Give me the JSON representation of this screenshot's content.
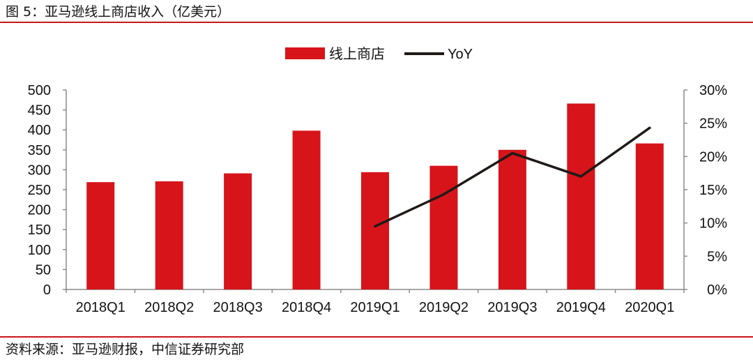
{
  "figure": {
    "title": "图 5：亚马逊线上商店收入（亿美元）",
    "source": "资料来源：亚马逊财报，中信证券研究部"
  },
  "chart_data": {
    "type": "bar",
    "title": "",
    "xlabel": "",
    "ylabel": "",
    "categories": [
      "2018Q1",
      "2018Q2",
      "2018Q3",
      "2018Q4",
      "2019Q1",
      "2019Q2",
      "2019Q3",
      "2019Q4",
      "2020Q1"
    ],
    "series": [
      {
        "name": "线上商店",
        "type": "bar",
        "axis": "left",
        "color": "#d7141a",
        "values": [
          269,
          271,
          291,
          398,
          294,
          310,
          350,
          466,
          366
        ]
      },
      {
        "name": "YoY",
        "type": "line",
        "axis": "right",
        "color": "#1f1a17",
        "values": [
          null,
          null,
          null,
          null,
          0.095,
          0.143,
          0.205,
          0.17,
          0.243
        ]
      }
    ],
    "ylim": [
      0,
      500
    ],
    "yticks": [
      "0",
      "50",
      "100",
      "150",
      "200",
      "250",
      "300",
      "350",
      "400",
      "450",
      "500"
    ],
    "y2lim": [
      0,
      0.3
    ],
    "y2ticks": [
      "0%",
      "5%",
      "10%",
      "15%",
      "20%",
      "25%",
      "30%"
    ],
    "legend": "top-center",
    "grid": false
  }
}
